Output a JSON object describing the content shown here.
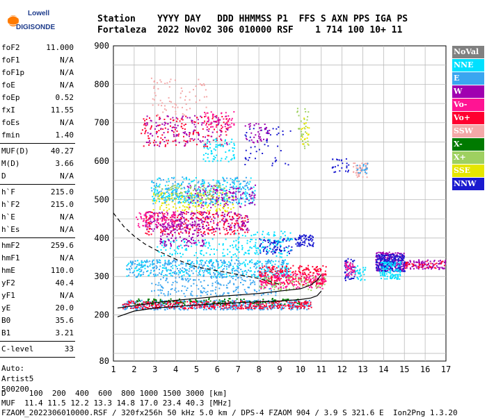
{
  "logo": {
    "line1": "Lowell",
    "line2": "DIGISONDE"
  },
  "header": {
    "line1": "Station    YYYY DAY   DDD HHMMSS P1  FFS S AXN PPS IGA PS",
    "line2": "Fortaleza  2022 Nov02 306 010000 RSF    1 714 100 10+ 11"
  },
  "params_groups": [
    [
      [
        "foF2",
        "11.000"
      ],
      [
        "foF1",
        "N/A"
      ],
      [
        "foF1p",
        "N/A"
      ],
      [
        "foE",
        "N/A"
      ],
      [
        "foEp",
        "0.52"
      ],
      [
        "fxI",
        "11.55"
      ],
      [
        "foEs",
        "N/A"
      ],
      [
        "fmin",
        "1.40"
      ]
    ],
    [
      [
        "MUF(D)",
        "40.27"
      ],
      [
        "M(D)",
        "3.66"
      ],
      [
        "D",
        "N/A"
      ]
    ],
    [
      [
        "h`F",
        "215.0"
      ],
      [
        "h`F2",
        "215.0"
      ],
      [
        "h`E",
        "N/A"
      ],
      [
        "h`Es",
        "N/A"
      ]
    ],
    [
      [
        "hmF2",
        "259.6"
      ],
      [
        "hmF1",
        "N/A"
      ],
      [
        "hmE",
        "110.0"
      ],
      [
        "yF2",
        "40.4"
      ],
      [
        "yF1",
        "N/A"
      ],
      [
        "yE",
        "20.0"
      ],
      [
        "B0",
        "35.6"
      ],
      [
        "B1",
        "3.21"
      ]
    ],
    [
      [
        "C-level",
        "33"
      ]
    ]
  ],
  "notes": [
    "Auto:",
    "Artist5",
    "500200"
  ],
  "legend": [
    {
      "label": "NoVal",
      "color": "#808080"
    },
    {
      "label": "NNE",
      "color": "#00e0ff"
    },
    {
      "label": "E",
      "color": "#3aa6f0"
    },
    {
      "label": "W",
      "color": "#a000b0"
    },
    {
      "label": "Vo-",
      "color": "#ff1493"
    },
    {
      "label": "Vo+",
      "color": "#ff0030"
    },
    {
      "label": "SSW",
      "color": "#f4a8a8"
    },
    {
      "label": "X-",
      "color": "#007a00"
    },
    {
      "label": "X+",
      "color": "#9ed060"
    },
    {
      "label": "SSE",
      "color": "#e6e600"
    },
    {
      "label": "NNW",
      "color": "#1a1ad0"
    }
  ],
  "footer": {
    "line1": "D     100  200  400  600  800 1000 1500 3000 [km]",
    "line2": "MUF  11.4 11.5 12.2 13.3 14.8 17.0 23.4 40.3 [MHz]",
    "line3": "FZAOM_2022306010000.RSF / 320fx256h 50 kHz 5.0 km / DPS-4 FZAOM 904 / 3.9 S 321.6 E  Ion2Png 1.3.20"
  },
  "chart_data": {
    "type": "scatter",
    "title": "",
    "xlabel": "",
    "ylabel": "",
    "xlim": [
      1,
      17
    ],
    "ylim": [
      80,
      900
    ],
    "xticks": [
      1,
      2,
      3,
      4,
      5,
      6,
      7,
      8,
      9,
      10,
      11,
      12,
      13,
      14,
      15,
      16,
      17
    ],
    "yticks": [
      80,
      200,
      300,
      400,
      500,
      600,
      700,
      800,
      900
    ],
    "grid": true,
    "virtual_height_trace": {
      "x": [
        1.2,
        2,
        3,
        4,
        5,
        6,
        7,
        8,
        9,
        10,
        10.5,
        10.8,
        11.0
      ],
      "y": [
        218,
        224,
        232,
        238,
        243,
        248,
        252,
        256,
        262,
        268,
        278,
        290,
        305
      ]
    },
    "true_height_profile": {
      "x": [
        1.2,
        2,
        3,
        4,
        5,
        6,
        7,
        8,
        9,
        10,
        10.5,
        10.8,
        11.0
      ],
      "y": [
        195,
        210,
        218,
        222,
        226,
        229,
        232,
        234,
        236,
        240,
        244,
        250,
        262
      ]
    },
    "dashed_curve": {
      "x": [
        1.0,
        1.5,
        2.0,
        2.5,
        3.0,
        4.0,
        5.0,
        6.0,
        7.0,
        8.0,
        9.0
      ],
      "y": [
        465,
        430,
        405,
        385,
        370,
        345,
        325,
        315,
        305,
        295,
        280
      ]
    },
    "clusters": [
      {
        "c": "#3aa6f0",
        "x": [
          1.4,
          10.5
        ],
        "y": [
          215,
          240
        ],
        "n": 520
      },
      {
        "c": "#ff0030",
        "x": [
          1.4,
          10.5
        ],
        "y": [
          218,
          238
        ],
        "n": 380
      },
      {
        "c": "#007a00",
        "x": [
          2,
          10
        ],
        "y": [
          228,
          245
        ],
        "n": 120
      },
      {
        "c": "#00e0ff",
        "x": [
          1.6,
          9.5
        ],
        "y": [
          300,
          345
        ],
        "n": 260
      },
      {
        "c": "#3aa6f0",
        "x": [
          1.6,
          9.5
        ],
        "y": [
          300,
          345
        ],
        "n": 320
      },
      {
        "c": "#3aa6f0",
        "x": [
          2.8,
          8.8
        ],
        "y": [
          250,
          300
        ],
        "n": 200
      },
      {
        "c": "#00e0ff",
        "x": [
          3,
          9.5
        ],
        "y": [
          350,
          400
        ],
        "n": 140
      },
      {
        "c": "#ff0030",
        "x": [
          8,
          11.2
        ],
        "y": [
          280,
          330
        ],
        "n": 260
      },
      {
        "c": "#ff1493",
        "x": [
          8,
          11.2
        ],
        "y": [
          270,
          310
        ],
        "n": 140
      },
      {
        "c": "#9ed060",
        "x": [
          8,
          11.2
        ],
        "y": [
          265,
          300
        ],
        "n": 70
      },
      {
        "c": "#ff0030",
        "x": [
          2.5,
          7.5
        ],
        "y": [
          410,
          470
        ],
        "n": 260
      },
      {
        "c": "#a000b0",
        "x": [
          2.5,
          7.5
        ],
        "y": [
          420,
          470
        ],
        "n": 200
      },
      {
        "c": "#ff1493",
        "x": [
          2,
          4
        ],
        "y": [
          430,
          470
        ],
        "n": 80
      },
      {
        "c": "#a000b0",
        "x": [
          3.2,
          5.4
        ],
        "y": [
          380,
          440
        ],
        "n": 120
      },
      {
        "c": "#e6e600",
        "x": [
          2.8,
          6.8
        ],
        "y": [
          470,
          520
        ],
        "n": 160
      },
      {
        "c": "#00e0ff",
        "x": [
          2.8,
          7.8
        ],
        "y": [
          490,
          560
        ],
        "n": 220
      },
      {
        "c": "#3aa6f0",
        "x": [
          2.8,
          7.8
        ],
        "y": [
          490,
          560
        ],
        "n": 200
      },
      {
        "c": "#a000b0",
        "x": [
          4.5,
          7.8
        ],
        "y": [
          480,
          540
        ],
        "n": 120
      },
      {
        "c": "#9ed060",
        "x": [
          3,
          6.5
        ],
        "y": [
          500,
          540
        ],
        "n": 80
      },
      {
        "c": "#ff0030",
        "x": [
          2.3,
          6.5
        ],
        "y": [
          640,
          720
        ],
        "n": 160
      },
      {
        "c": "#a000b0",
        "x": [
          2.5,
          6.5
        ],
        "y": [
          640,
          720
        ],
        "n": 120
      },
      {
        "c": "#ff1493",
        "x": [
          5.3,
          6.8
        ],
        "y": [
          690,
          730
        ],
        "n": 50
      },
      {
        "c": "#f4a8a8",
        "x": [
          2.8,
          5.5
        ],
        "y": [
          720,
          820
        ],
        "n": 70
      },
      {
        "c": "#00e0ff",
        "x": [
          5.3,
          6.8
        ],
        "y": [
          600,
          660
        ],
        "n": 70
      },
      {
        "c": "#1a1ad0",
        "x": [
          8,
          9.6
        ],
        "y": [
          360,
          400
        ],
        "n": 80
      },
      {
        "c": "#1a1ad0",
        "x": [
          9.7,
          10.6
        ],
        "y": [
          380,
          410
        ],
        "n": 70
      },
      {
        "c": "#00e0ff",
        "x": [
          6.8,
          9.6
        ],
        "y": [
          360,
          420
        ],
        "n": 80
      },
      {
        "c": "#1a1ad0",
        "x": [
          7.3,
          9.5
        ],
        "y": [
          590,
          700
        ],
        "n": 50
      },
      {
        "c": "#a000b0",
        "x": [
          7.3,
          8.5
        ],
        "y": [
          650,
          700
        ],
        "n": 40
      },
      {
        "c": "#9ed060",
        "x": [
          9.8,
          10.4
        ],
        "y": [
          630,
          740
        ],
        "n": 30
      },
      {
        "c": "#e6e600",
        "x": [
          9.9,
          10.4
        ],
        "y": [
          640,
          720
        ],
        "n": 20
      },
      {
        "c": "#1a1ad0",
        "x": [
          11.5,
          12.3
        ],
        "y": [
          570,
          610
        ],
        "n": 25
      },
      {
        "c": "#f4a8a8",
        "x": [
          12.5,
          13.2
        ],
        "y": [
          560,
          600
        ],
        "n": 45
      },
      {
        "c": "#3aa6f0",
        "x": [
          12.6,
          13.2
        ],
        "y": [
          570,
          600
        ],
        "n": 20
      },
      {
        "c": "#1a1ad0",
        "x": [
          12.1,
          12.6
        ],
        "y": [
          290,
          350
        ],
        "n": 60
      },
      {
        "c": "#ff1493",
        "x": [
          12.1,
          12.6
        ],
        "y": [
          300,
          340
        ],
        "n": 40
      },
      {
        "c": "#00e0ff",
        "x": [
          12.6,
          13.1
        ],
        "y": [
          290,
          330
        ],
        "n": 30
      },
      {
        "c": "#a000b0",
        "x": [
          13.6,
          15.0
        ],
        "y": [
          315,
          365
        ],
        "n": 260
      },
      {
        "c": "#1a1ad0",
        "x": [
          13.6,
          15.0
        ],
        "y": [
          315,
          360
        ],
        "n": 200
      },
      {
        "c": "#00e0ff",
        "x": [
          13.8,
          14.8
        ],
        "y": [
          295,
          340
        ],
        "n": 120
      },
      {
        "c": "#a000b0",
        "x": [
          15.0,
          17
        ],
        "y": [
          320,
          345
        ],
        "n": 90
      },
      {
        "c": "#ff0030",
        "x": [
          15.0,
          17
        ],
        "y": [
          322,
          342
        ],
        "n": 40
      }
    ]
  }
}
